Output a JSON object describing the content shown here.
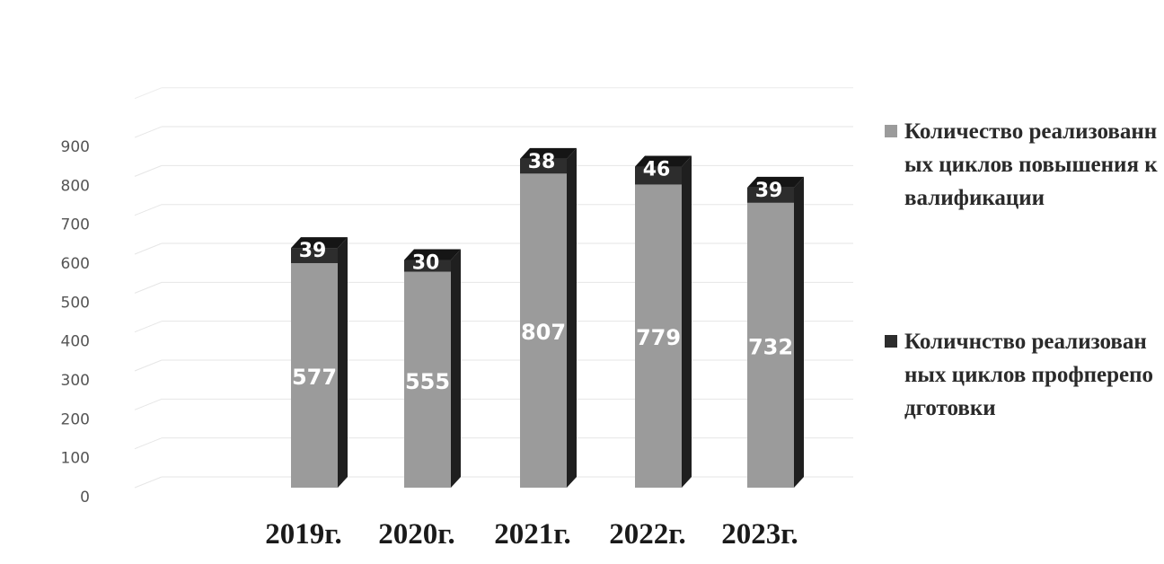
{
  "chart_data": {
    "type": "bar",
    "stacked": true,
    "style": "3d",
    "categories": [
      "2019г.",
      "2020г.",
      "2021г.",
      "2022г.",
      "2023г."
    ],
    "series": [
      {
        "name": "Количество реализованных циклов повышения квалификации",
        "values": [
          577,
          555,
          807,
          779,
          732
        ],
        "color": "#9b9b9b"
      },
      {
        "name": "Количнство реализованных циклов профпереподготовки",
        "values": [
          39,
          30,
          38,
          46,
          39
        ],
        "color": "#2d2d2d"
      }
    ],
    "y_ticks": [
      "0",
      "100",
      "200",
      "300",
      "400",
      "500",
      "600",
      "700",
      "800",
      "900"
    ],
    "ylim": [
      0,
      900
    ],
    "grid": true,
    "legend_position": "right"
  },
  "legend": {
    "items": [
      {
        "label": "Количество реализованных циклов повышения квалификации",
        "color": "#9b9b9b"
      },
      {
        "label": "Количнство реализованных циклов профпереподготовки",
        "color": "#2d2d2d"
      }
    ]
  }
}
